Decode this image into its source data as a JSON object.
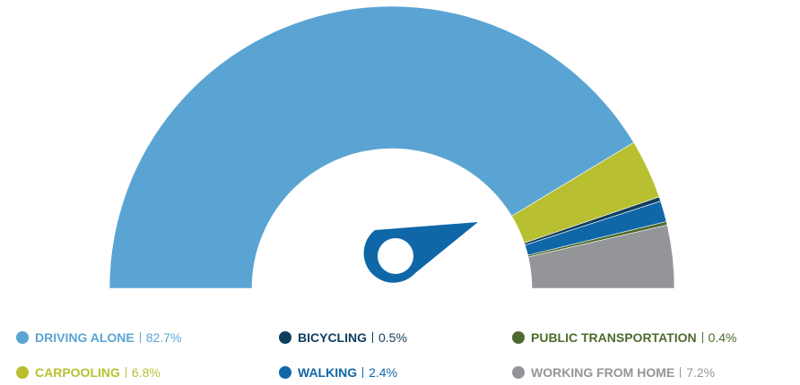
{
  "chart_data": {
    "type": "semi-donut",
    "categories": [
      "DRIVING ALONE",
      "CARPOOLING",
      "BICYCLING",
      "WALKING",
      "PUBLIC TRANSPORTATION",
      "WORKING FROM HOME"
    ],
    "values": [
      82.7,
      6.8,
      0.5,
      2.4,
      0.4,
      7.2
    ],
    "value_labels": [
      "82.7%",
      "6.8%",
      "0.5%",
      "2.4%",
      "0.4%",
      "7.2%"
    ],
    "colors": [
      "#5aa4d3",
      "#b8c032",
      "#0f3d5e",
      "#1067a8",
      "#4e6a2e",
      "#939598"
    ]
  }
}
